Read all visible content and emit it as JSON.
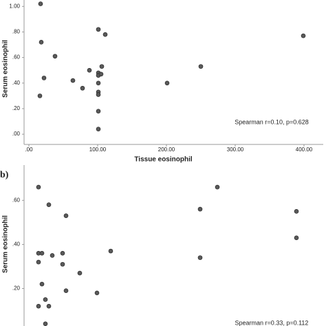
{
  "chart_data": [
    {
      "type": "scatter",
      "x_label": "Tissue eosinophil",
      "y_label": "Serum eosinophil",
      "annotation": "Spearman r=0.10, p=0.628",
      "color": "#595959",
      "xlim": [
        -7,
        428
      ],
      "ylim": [
        -0.08,
        1.05
      ],
      "xticks": [
        {
          "value": 0,
          "label": ".00"
        },
        {
          "value": 100,
          "label": "100.00"
        },
        {
          "value": 200,
          "label": "200.00"
        },
        {
          "value": 300,
          "label": "300.00"
        },
        {
          "value": 400,
          "label": "400.00"
        }
      ],
      "yticks": [
        {
          "value": 0,
          "label": ".00"
        },
        {
          "value": 0.2,
          "label": ".20"
        },
        {
          "value": 0.4,
          "label": ".40"
        },
        {
          "value": 0.6,
          "label": ".60"
        },
        {
          "value": 0.8,
          "label": ".80"
        },
        {
          "value": 1,
          "label": "1.00"
        }
      ],
      "x": [
        17,
        18,
        38,
        22,
        16,
        88,
        64,
        78,
        101,
        111,
        101,
        101,
        106,
        105,
        101,
        101,
        101,
        101,
        101,
        201,
        250,
        399
      ],
      "values": [
        1.02,
        0.72,
        0.61,
        0.44,
        0.3,
        0.5,
        0.42,
        0.36,
        0.82,
        0.78,
        0.48,
        0.46,
        0.53,
        0.47,
        0.4,
        0.33,
        0.31,
        0.18,
        0.04,
        0.4,
        0.53,
        0.77
      ]
    },
    {
      "type": "scatter",
      "panel_label": "b)",
      "y_label": "Serum eosinophil",
      "annotation": "Spearman r=0.33, p=0.112",
      "color": "#595959",
      "xlim": [
        -7,
        428
      ],
      "ylim": [
        0.03,
        0.76
      ],
      "yticks": [
        {
          "value": 0.2,
          "label": ".20"
        },
        {
          "value": 0.4,
          "label": ".40"
        },
        {
          "value": 0.6,
          "label": ".60"
        }
      ],
      "x": [
        14,
        29,
        54,
        14,
        19,
        14,
        34,
        19,
        24,
        14,
        29,
        49,
        49,
        54,
        74,
        119,
        99,
        249,
        249,
        274,
        389,
        389,
        24
      ],
      "values": [
        0.66,
        0.58,
        0.53,
        0.36,
        0.36,
        0.32,
        0.35,
        0.22,
        0.15,
        0.12,
        0.12,
        0.36,
        0.31,
        0.19,
        0.27,
        0.37,
        0.18,
        0.56,
        0.34,
        0.66,
        0.55,
        0.43,
        0.04
      ]
    }
  ]
}
